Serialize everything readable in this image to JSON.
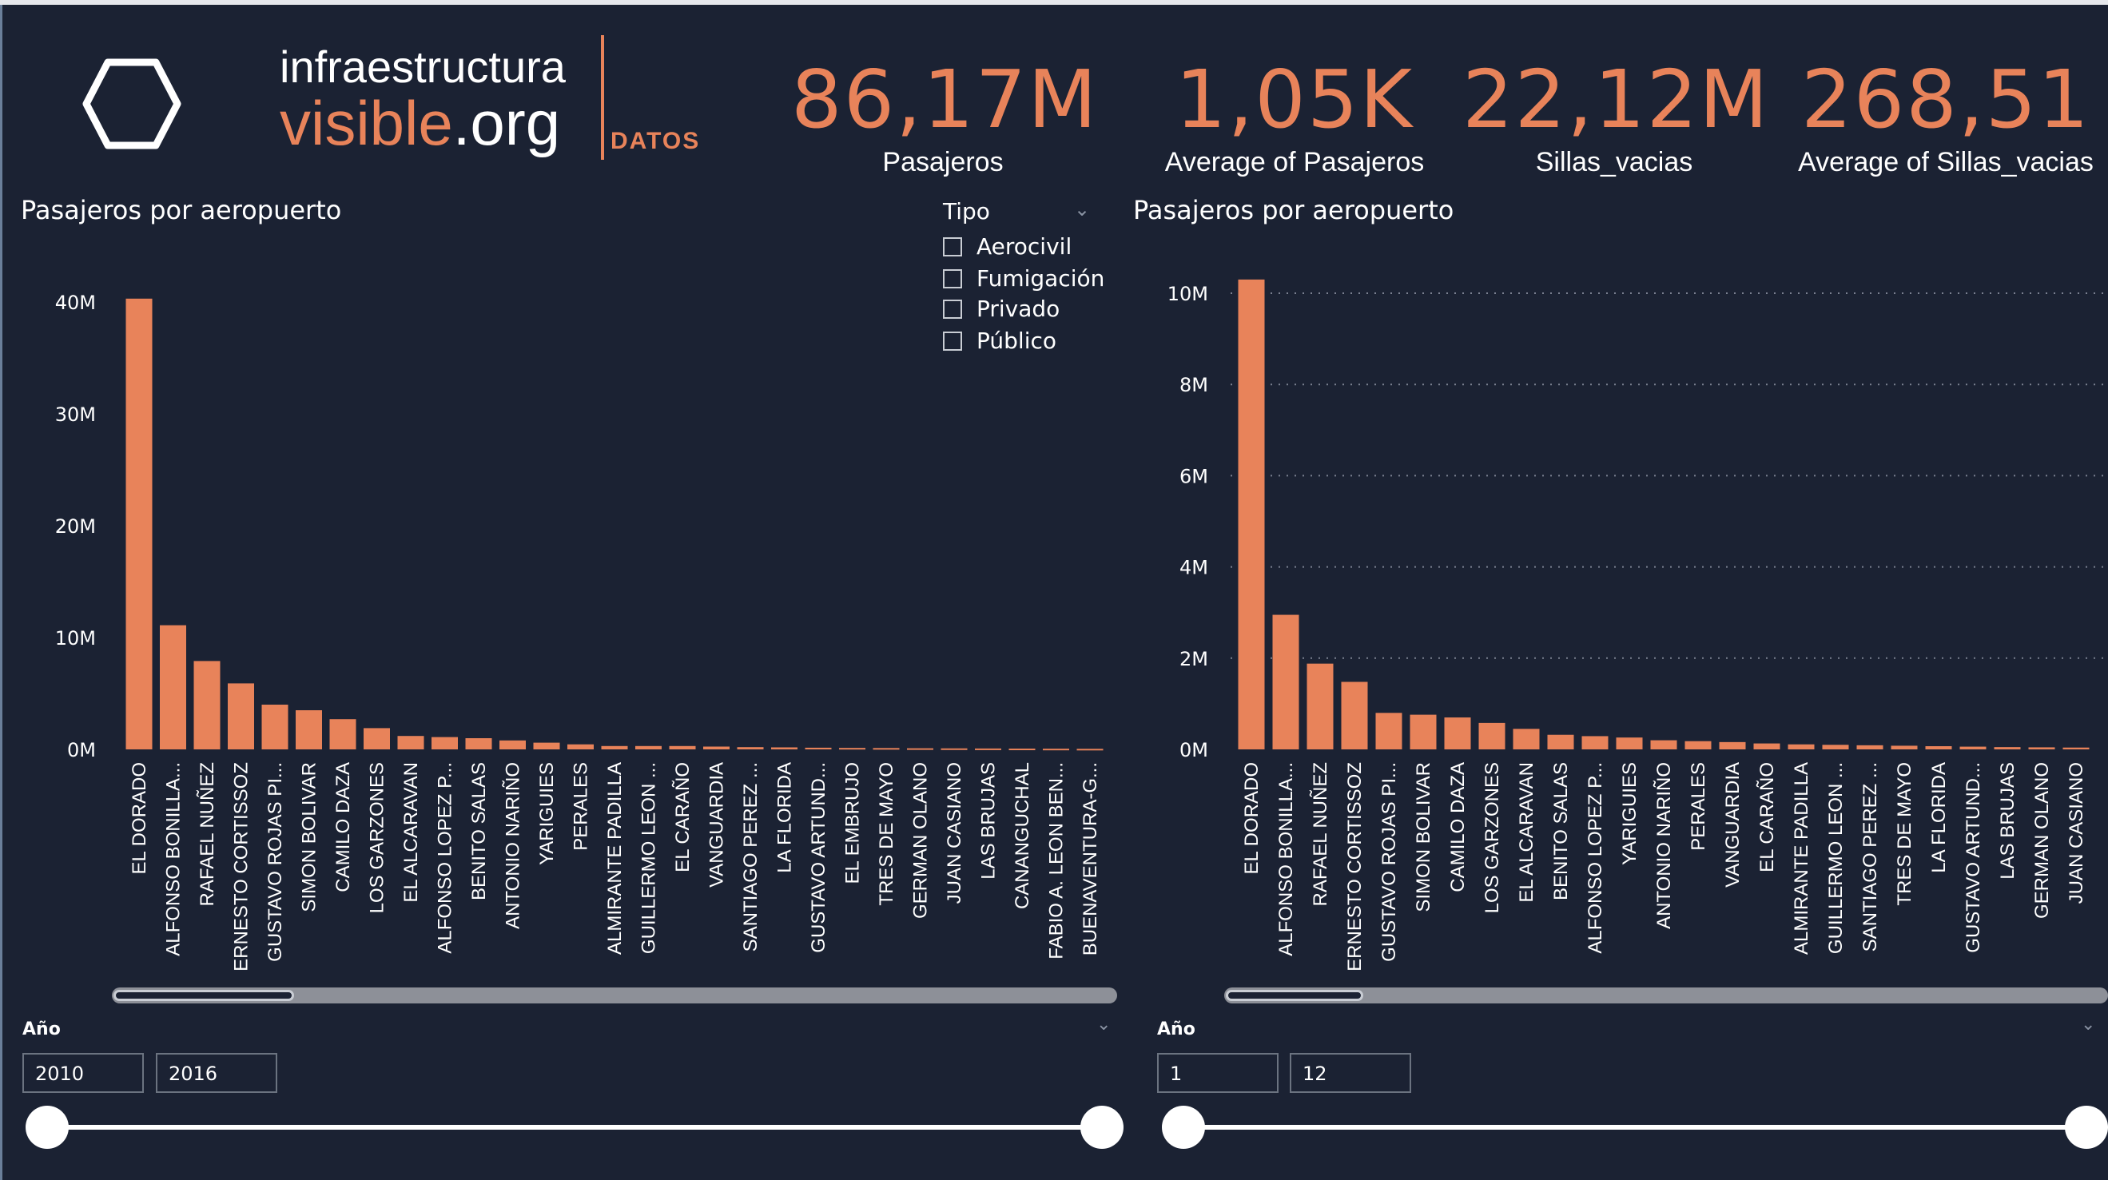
{
  "colors": {
    "accent": "#e8835a",
    "background": "#1b2233",
    "text": "#ffffff",
    "gridline": "#7a8090"
  },
  "brand": {
    "line1": "infraestructura",
    "line2a": "visible",
    "line2b": ".org",
    "tag": "DATOS"
  },
  "kpis": [
    {
      "value": "86,17M",
      "label": "Pasajeros"
    },
    {
      "value": "1,05K",
      "label": "Average of Pasajeros"
    },
    {
      "value": "22,12M",
      "label": "Sillas_vacias"
    },
    {
      "value": "268,51",
      "label": "Average of Sillas_vacias"
    }
  ],
  "filter": {
    "title": "Tipo",
    "options": [
      "Aerocivil",
      "Fumigación",
      "Privado",
      "Público"
    ]
  },
  "slicers": [
    {
      "title": "Año",
      "from": "2010",
      "to": "2016"
    },
    {
      "title": "Año",
      "from": "1",
      "to": "12"
    }
  ],
  "chart_data": [
    {
      "type": "bar",
      "title": "Pasajeros por aeropuerto",
      "ylim": [
        0,
        40000000
      ],
      "y_ticks": [
        "0M",
        "10M",
        "20M",
        "30M",
        "40M"
      ],
      "y_tick_values": [
        0,
        10000000,
        20000000,
        30000000,
        40000000
      ],
      "grid": false,
      "categories": [
        "EL DORADO",
        "ALFONSO BONILLA...",
        "RAFAEL NUÑEZ",
        "ERNESTO CORTISSOZ",
        "GUSTAVO ROJAS PI...",
        "SIMON BOLIVAR",
        "CAMILO DAZA",
        "LOS GARZONES",
        "EL ALCARAVAN",
        "ALFONSO LOPEZ P...",
        "BENITO SALAS",
        "ANTONIO NARIÑO",
        "YARIGUIES",
        "PERALES",
        "ALMIRANTE PADILLA",
        "GUILLERMO LEON ...",
        "EL CARAÑO",
        "VANGUARDIA",
        "SANTIAGO PEREZ ...",
        "LA FLORIDA",
        "GUSTAVO ARTUND...",
        "EL EMBRUJO",
        "TRES DE MAYO",
        "GERMAN OLANO",
        "JUAN CASIANO",
        "LAS BRUJAS",
        "CANANGUCHAL",
        "FABIO A. LEON BEN...",
        "BUENAVENTURA-G..."
      ],
      "values": [
        40300000,
        11100000,
        7900000,
        5900000,
        4000000,
        3500000,
        2700000,
        1900000,
        1200000,
        1100000,
        1000000,
        800000,
        600000,
        450000,
        300000,
        300000,
        300000,
        250000,
        200000,
        180000,
        150000,
        130000,
        120000,
        100000,
        90000,
        80000,
        70000,
        60000,
        50000
      ]
    },
    {
      "type": "bar",
      "title": "Pasajeros por aeropuerto",
      "ylim": [
        0,
        10000000
      ],
      "y_ticks": [
        "0M",
        "2M",
        "4M",
        "6M",
        "8M",
        "10M"
      ],
      "y_tick_values": [
        0,
        2000000,
        4000000,
        6000000,
        8000000,
        10000000
      ],
      "grid": true,
      "categories": [
        "EL DORADO",
        "ALFONSO BONILLA...",
        "RAFAEL NUÑEZ",
        "ERNESTO CORTISSOZ",
        "GUSTAVO ROJAS PI...",
        "SIMON BOLIVAR",
        "CAMILO DAZA",
        "LOS GARZONES",
        "EL ALCARAVAN",
        "BENITO SALAS",
        "ALFONSO LOPEZ P...",
        "YARIGUIES",
        "ANTONIO NARIÑO",
        "PERALES",
        "VANGUARDIA",
        "EL CARAÑO",
        "ALMIRANTE PADILLA",
        "GUILLERMO LEON ...",
        "SANTIAGO PEREZ ...",
        "TRES DE MAYO",
        "LA FLORIDA",
        "GUSTAVO ARTUND...",
        "LAS BRUJAS",
        "GERMAN OLANO",
        "JUAN CASIANO"
      ],
      "values": [
        10300000,
        2950000,
        1880000,
        1480000,
        800000,
        760000,
        700000,
        580000,
        450000,
        320000,
        290000,
        260000,
        200000,
        180000,
        160000,
        130000,
        110000,
        100000,
        90000,
        80000,
        70000,
        60000,
        50000,
        45000,
        40000
      ]
    }
  ]
}
